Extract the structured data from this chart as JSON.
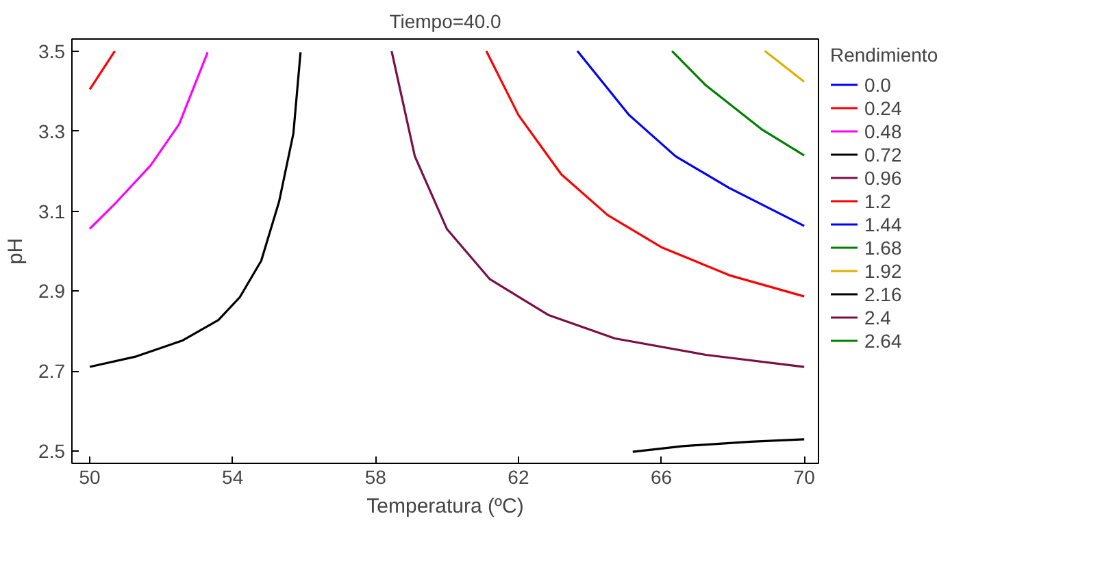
{
  "chart_data": {
    "type": "line",
    "title": "Tiempo=40.0",
    "xlabel": "Temperatura (ºC)",
    "ylabel": "pH",
    "legend_title": "Rendimiento",
    "legend": "right",
    "xlim": [
      49.5,
      70.4
    ],
    "ylim": [
      2.47,
      3.53
    ],
    "xticks": [
      50,
      54,
      58,
      62,
      66,
      70
    ],
    "yticks": [
      2.5,
      2.7,
      2.9,
      3.1,
      3.3,
      3.5
    ],
    "grid": false,
    "line_style": "solid",
    "marker": "none",
    "series": [
      {
        "name": "0.0",
        "color": "#0000ff"
      },
      {
        "name": "0.24",
        "color": "#ff0000",
        "x": [
          50,
          50.7
        ],
        "values": [
          3.404,
          3.5
        ]
      },
      {
        "name": "0.48",
        "color": "#ff00ff",
        "x": [
          50,
          50.7,
          51.7,
          52.5,
          53.3
        ],
        "values": [
          3.056,
          3.118,
          3.214,
          3.317,
          3.497
        ]
      },
      {
        "name": "0.72",
        "color": "#000000",
        "x": [
          50,
          51.3,
          52.6,
          53.6,
          54.2,
          54.8,
          55.3,
          55.7,
          55.9,
          null,
          65.2,
          66.6,
          68.5,
          70
        ],
        "values": [
          2.711,
          2.737,
          2.777,
          2.828,
          2.885,
          2.976,
          3.124,
          3.294,
          3.497,
          null,
          2.499,
          2.513,
          2.524,
          2.53
        ]
      },
      {
        "name": "0.96",
        "color": "#7b0f45",
        "x": [
          58.45,
          59.1,
          60.0,
          61.2,
          62.85,
          64.7,
          67.25,
          70
        ],
        "values": [
          3.5,
          3.237,
          3.055,
          2.93,
          2.84,
          2.782,
          2.741,
          2.711
        ]
      },
      {
        "name": "1.2",
        "color": "#ff0000",
        "x": [
          61.1,
          62.0,
          63.2,
          64.5,
          66.0,
          67.9,
          70
        ],
        "values": [
          3.5,
          3.34,
          3.192,
          3.09,
          3.01,
          2.94,
          2.887
        ]
      },
      {
        "name": "1.44",
        "color": "#0000ff",
        "x": [
          63.65,
          65.1,
          66.4,
          67.9,
          70
        ],
        "values": [
          3.5,
          3.34,
          3.237,
          3.158,
          3.063
        ]
      },
      {
        "name": "1.68",
        "color": "#008000",
        "x": [
          66.3,
          67.25,
          68.8,
          70
        ],
        "values": [
          3.5,
          3.414,
          3.305,
          3.239
        ]
      },
      {
        "name": "1.92",
        "color": "#e0b000",
        "x": [
          68.9,
          70
        ],
        "values": [
          3.5,
          3.423
        ]
      },
      {
        "name": "2.16",
        "color": "#000000"
      },
      {
        "name": "2.4",
        "color": "#7b0f45"
      },
      {
        "name": "2.64",
        "color": "#008000"
      }
    ]
  }
}
